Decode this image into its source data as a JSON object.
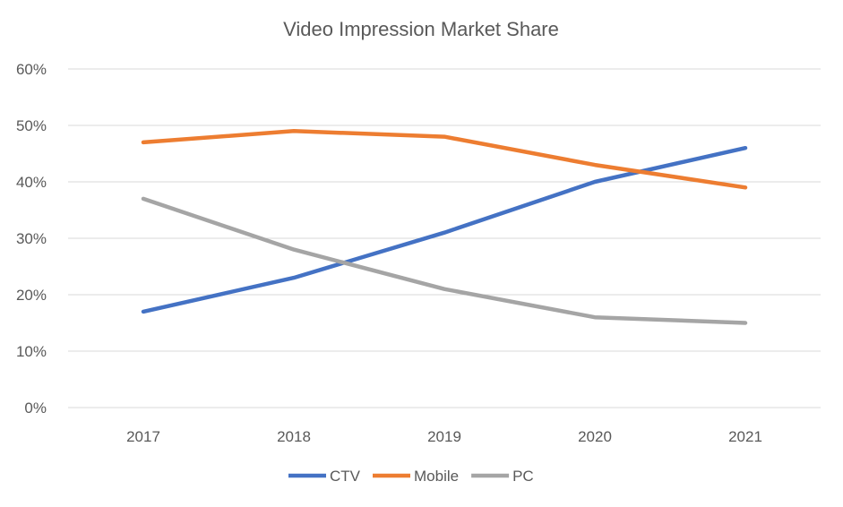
{
  "chart_data": {
    "type": "line",
    "title": "Video Impression Market Share",
    "xlabel": "",
    "ylabel": "",
    "categories": [
      "2017",
      "2018",
      "2019",
      "2020",
      "2021"
    ],
    "ylim": [
      0,
      60
    ],
    "y_ticks": [
      0,
      10,
      20,
      30,
      40,
      50,
      60
    ],
    "y_tick_labels": [
      "0%",
      "10%",
      "20%",
      "30%",
      "40%",
      "50%",
      "60%"
    ],
    "grid": true,
    "legend_position": "bottom",
    "series": [
      {
        "name": "CTV",
        "color": "#4472C4",
        "values": [
          17,
          23,
          31,
          40,
          46
        ]
      },
      {
        "name": "Mobile",
        "color": "#ED7D31",
        "values": [
          47,
          49,
          48,
          43,
          39
        ]
      },
      {
        "name": "PC",
        "color": "#A5A5A5",
        "values": [
          37,
          28,
          21,
          16,
          15
        ]
      }
    ]
  }
}
